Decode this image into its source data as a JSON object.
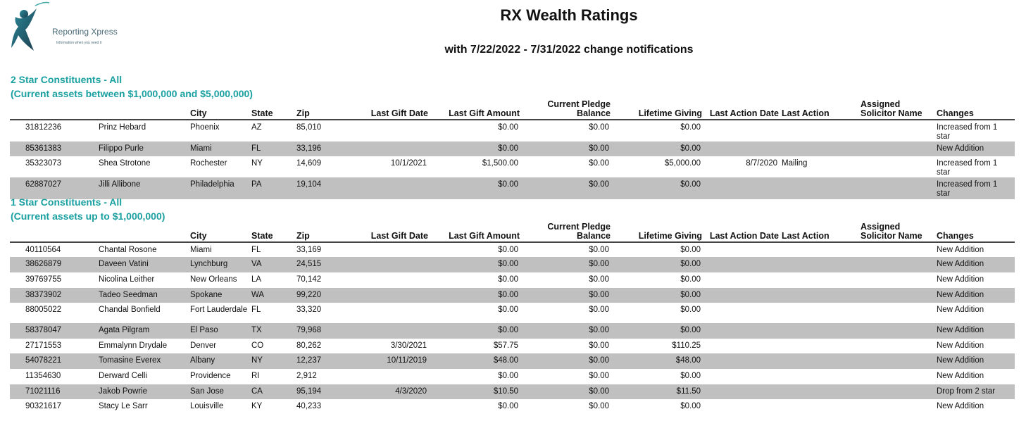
{
  "logo": {
    "name": "Reporting Xpress",
    "tagline": "Information when you need it"
  },
  "header": {
    "title": "RX Wealth Ratings",
    "subtitle": "with 7/22/2022 - 7/31/2022 change notifications"
  },
  "columns": [
    "",
    "",
    "City",
    "State",
    "Zip",
    "Last Gift Date",
    "Last Gift Amount",
    "Current Pledge Balance",
    "Lifetime Giving",
    "Last Action Date",
    "Last Action",
    "Assigned Solicitor Name",
    "Changes"
  ],
  "sections": [
    {
      "title": "2 Star Constituents - All",
      "subtitle": "(Current assets between $1,000,000 and $5,000,000)",
      "rows": [
        [
          "31812236",
          "Prinz Hebard",
          "Phoenix",
          "AZ",
          "85,010",
          "",
          "$0.00",
          "$0.00",
          "$0.00",
          "",
          "",
          "",
          "Increased from  1 star"
        ],
        [
          "85361383",
          "Filippo Purle",
          "Miami",
          "FL",
          "33,196",
          "",
          "$0.00",
          "$0.00",
          "$0.00",
          "",
          "",
          "",
          "New Addition"
        ],
        [
          "35323073",
          "Shea Strotone",
          "Rochester",
          "NY",
          "14,609",
          "10/1/2021",
          "$1,500.00",
          "$0.00",
          "$5,000.00",
          "8/7/2020",
          "Mailing",
          "",
          "Increased from  1 star"
        ],
        [
          "62887027",
          "Jilli Allibone",
          "Philadelphia",
          "PA",
          "19,104",
          "",
          "$0.00",
          "$0.00",
          "$0.00",
          "",
          "",
          "",
          "Increased from  1 star"
        ]
      ]
    },
    {
      "title": "1 Star Constituents - All",
      "subtitle": "(Current assets up to $1,000,000)",
      "rows": [
        [
          "40110564",
          "Chantal Rosone",
          "Miami",
          "FL",
          "33,169",
          "",
          "$0.00",
          "$0.00",
          "$0.00",
          "",
          "",
          "",
          "New Addition"
        ],
        [
          "38626879",
          "Daveen Vatini",
          "Lynchburg",
          "VA",
          "24,515",
          "",
          "$0.00",
          "$0.00",
          "$0.00",
          "",
          "",
          "",
          "New Addition"
        ],
        [
          "39769755",
          "Nicolina Leither",
          "New Orleans",
          "LA",
          "70,142",
          "",
          "$0.00",
          "$0.00",
          "$0.00",
          "",
          "",
          "",
          "New Addition"
        ],
        [
          "38373902",
          "Tadeo Seedman",
          "Spokane",
          "WA",
          "99,220",
          "",
          "$0.00",
          "$0.00",
          "$0.00",
          "",
          "",
          "",
          "New Addition"
        ],
        [
          "88005022",
          "Chandal Bonfield",
          "Fort Lauderdale",
          "FL",
          "33,320",
          "",
          "$0.00",
          "$0.00",
          "$0.00",
          "",
          "",
          "",
          "New Addition"
        ],
        [
          "58378047",
          "Agata Pilgram",
          "El Paso",
          "TX",
          "79,968",
          "",
          "$0.00",
          "$0.00",
          "$0.00",
          "",
          "",
          "",
          "New Addition"
        ],
        [
          "27171553",
          "Emmalynn Drydale",
          "Denver",
          "CO",
          "80,262",
          "3/30/2021",
          "$57.75",
          "$0.00",
          "$110.25",
          "",
          "",
          "",
          "New Addition"
        ],
        [
          "54078221",
          "Tomasine Everex",
          "Albany",
          "NY",
          "12,237",
          "10/11/2019",
          "$48.00",
          "$0.00",
          "$48.00",
          "",
          "",
          "",
          "New Addition"
        ],
        [
          "11354630",
          "Derward Celli",
          "Providence",
          "RI",
          "2,912",
          "",
          "$0.00",
          "$0.00",
          "$0.00",
          "",
          "",
          "",
          "New Addition"
        ],
        [
          "71021116",
          "Jakob Powrie",
          "San Jose",
          "CA",
          "95,194",
          "4/3/2020",
          "$10.50",
          "$0.00",
          "$11.50",
          "",
          "",
          "",
          "Drop from  2 star"
        ],
        [
          "90321617",
          "Stacy Le Sarr",
          "Louisville",
          "KY",
          "40,233",
          "",
          "$0.00",
          "$0.00",
          "$0.00",
          "",
          "",
          "",
          "New Addition"
        ]
      ]
    }
  ],
  "colors": {
    "section_title": "#1aa0a0",
    "alt_row": "#c0c0c0"
  }
}
